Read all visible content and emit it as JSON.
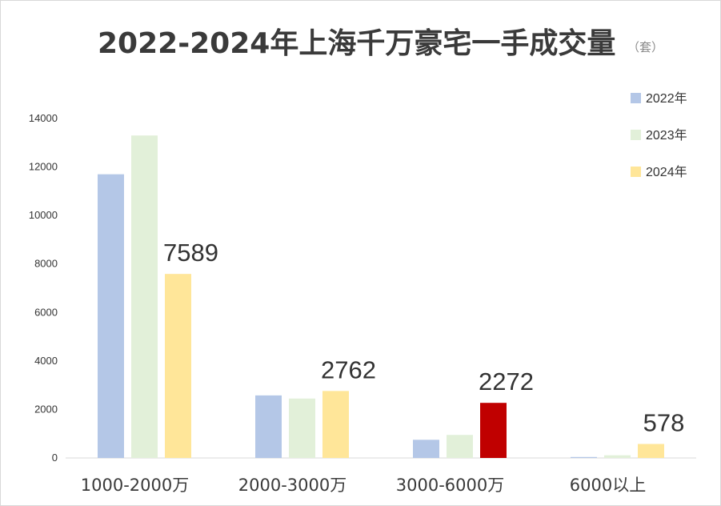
{
  "chart_data": {
    "type": "bar",
    "title": "2022-2024年上海千万豪宅一手成交量",
    "title_unit": "（套）",
    "categories": [
      "1000-2000万",
      "2000-3000万",
      "3000-6000万",
      "6000以上"
    ],
    "series": [
      {
        "name": "2022年",
        "color": "#b4c7e7",
        "values": [
          11700,
          2580,
          750,
          40
        ]
      },
      {
        "name": "2023年",
        "color": "#e2f0d9",
        "values": [
          13300,
          2450,
          950,
          110
        ]
      },
      {
        "name": "2024年",
        "color": "#ffe699",
        "values": [
          7589,
          2762,
          2272,
          578
        ]
      }
    ],
    "data_labels": [
      {
        "series": 2,
        "category": 0,
        "text": "7589"
      },
      {
        "series": 2,
        "category": 1,
        "text": "2762"
      },
      {
        "series": 2,
        "category": 2,
        "text": "2272",
        "highlight": true
      },
      {
        "series": 2,
        "category": 3,
        "text": "578"
      }
    ],
    "highlight_color": "#c00000",
    "yticks": [
      "0",
      "2000",
      "4000",
      "6000",
      "8000",
      "10000",
      "12000",
      "14000"
    ],
    "ylim": [
      0,
      14000
    ],
    "grid": false,
    "legend_position": "top-right",
    "xlabel": "",
    "ylabel": ""
  }
}
